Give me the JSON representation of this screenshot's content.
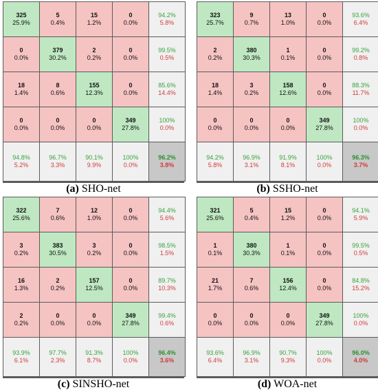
{
  "chart_data": [
    {
      "type": "table",
      "caption_letter": "(a)",
      "caption_name": "SHO-net",
      "counts": [
        [
          325,
          5,
          15,
          0
        ],
        [
          0,
          379,
          2,
          0
        ],
        [
          18,
          8,
          155,
          0
        ],
        [
          0,
          0,
          0,
          349
        ]
      ],
      "cell_percents": [
        [
          "25.9%",
          "0.4%",
          "1.2%",
          "0.0%"
        ],
        [
          "0.0%",
          "30.2%",
          "0.2%",
          "0.0%"
        ],
        [
          "1.4%",
          "0.6%",
          "12.3%",
          "0.0%"
        ],
        [
          "0.0%",
          "0.0%",
          "0.0%",
          "27.8%"
        ]
      ],
      "row_summary": [
        [
          "94.2%",
          "5.8%"
        ],
        [
          "99.5%",
          "0.5%"
        ],
        [
          "85.6%",
          "14.4%"
        ],
        [
          "100%",
          "0.0%"
        ]
      ],
      "col_summary": [
        [
          "94.8%",
          "5.2%"
        ],
        [
          "96.7%",
          "3.3%"
        ],
        [
          "90.1%",
          "9.9%"
        ],
        [
          "100%",
          "0.0%"
        ]
      ],
      "overall": [
        "96.2%",
        "3.8%"
      ]
    },
    {
      "type": "table",
      "caption_letter": "(b)",
      "caption_name": "SSHO-net",
      "counts": [
        [
          323,
          9,
          13,
          0
        ],
        [
          2,
          380,
          1,
          0
        ],
        [
          18,
          3,
          158,
          0
        ],
        [
          0,
          0,
          0,
          349
        ]
      ],
      "cell_percents": [
        [
          "25.7%",
          "0.7%",
          "1.0%",
          "0.0%"
        ],
        [
          "0.2%",
          "30.3%",
          "0.1%",
          "0.0%"
        ],
        [
          "1.4%",
          "0.2%",
          "12.6%",
          "0.0%"
        ],
        [
          "0.0%",
          "0.0%",
          "0.0%",
          "27.8%"
        ]
      ],
      "row_summary": [
        [
          "93.6%",
          "6.4%"
        ],
        [
          "99.2%",
          "0.8%"
        ],
        [
          "88.3%",
          "11.7%"
        ],
        [
          "100%",
          "0.0%"
        ]
      ],
      "col_summary": [
        [
          "94.2%",
          "5.8%"
        ],
        [
          "96.9%",
          "3.1%"
        ],
        [
          "91.9%",
          "8.1%"
        ],
        [
          "100%",
          "0.0%"
        ]
      ],
      "overall": [
        "96.3%",
        "3.7%"
      ]
    },
    {
      "type": "table",
      "caption_letter": "(c)",
      "caption_name": "SINSHO-net",
      "counts": [
        [
          322,
          7,
          12,
          0
        ],
        [
          3,
          383,
          3,
          0
        ],
        [
          16,
          2,
          157,
          0
        ],
        [
          2,
          0,
          0,
          349
        ]
      ],
      "cell_percents": [
        [
          "25.6%",
          "0.6%",
          "1.0%",
          "0.0%"
        ],
        [
          "0.2%",
          "30.5%",
          "0.2%",
          "0.0%"
        ],
        [
          "1.3%",
          "0.2%",
          "12.5%",
          "0.0%"
        ],
        [
          "0.2%",
          "0.0%",
          "0.0%",
          "27.8%"
        ]
      ],
      "row_summary": [
        [
          "94.4%",
          "5.6%"
        ],
        [
          "98.5%",
          "1.5%"
        ],
        [
          "89.7%",
          "10.3%"
        ],
        [
          "99.4%",
          "0.6%"
        ]
      ],
      "col_summary": [
        [
          "93.9%",
          "6.1%"
        ],
        [
          "97.7%",
          "2.3%"
        ],
        [
          "91.3%",
          "8.7%"
        ],
        [
          "100%",
          "0.0%"
        ]
      ],
      "overall": [
        "96.4%",
        "3.6%"
      ]
    },
    {
      "type": "table",
      "caption_letter": "(d)",
      "caption_name": "WOA-net",
      "counts": [
        [
          321,
          5,
          15,
          0
        ],
        [
          1,
          380,
          1,
          0
        ],
        [
          21,
          7,
          156,
          0
        ],
        [
          0,
          0,
          0,
          349
        ]
      ],
      "cell_percents": [
        [
          "25.6%",
          "0.4%",
          "1.2%",
          "0.0%"
        ],
        [
          "0.1%",
          "30.3%",
          "0.1%",
          "0.0%"
        ],
        [
          "1.7%",
          "0.6%",
          "12.4%",
          "0.0%"
        ],
        [
          "0.0%",
          "0.0%",
          "0.0%",
          "27.8%"
        ]
      ],
      "row_summary": [
        [
          "94.1%",
          "5.9%"
        ],
        [
          "99.5%",
          "0.5%"
        ],
        [
          "84.8%",
          "15.2%"
        ],
        [
          "100%",
          "0.0%"
        ]
      ],
      "col_summary": [
        [
          "93.6%",
          "6.4%"
        ],
        [
          "96.9%",
          "3.1%"
        ],
        [
          "90.7%",
          "9.3%"
        ],
        [
          "100%",
          "0.0%"
        ]
      ],
      "overall": [
        "96.0%",
        "4.0%"
      ]
    }
  ]
}
